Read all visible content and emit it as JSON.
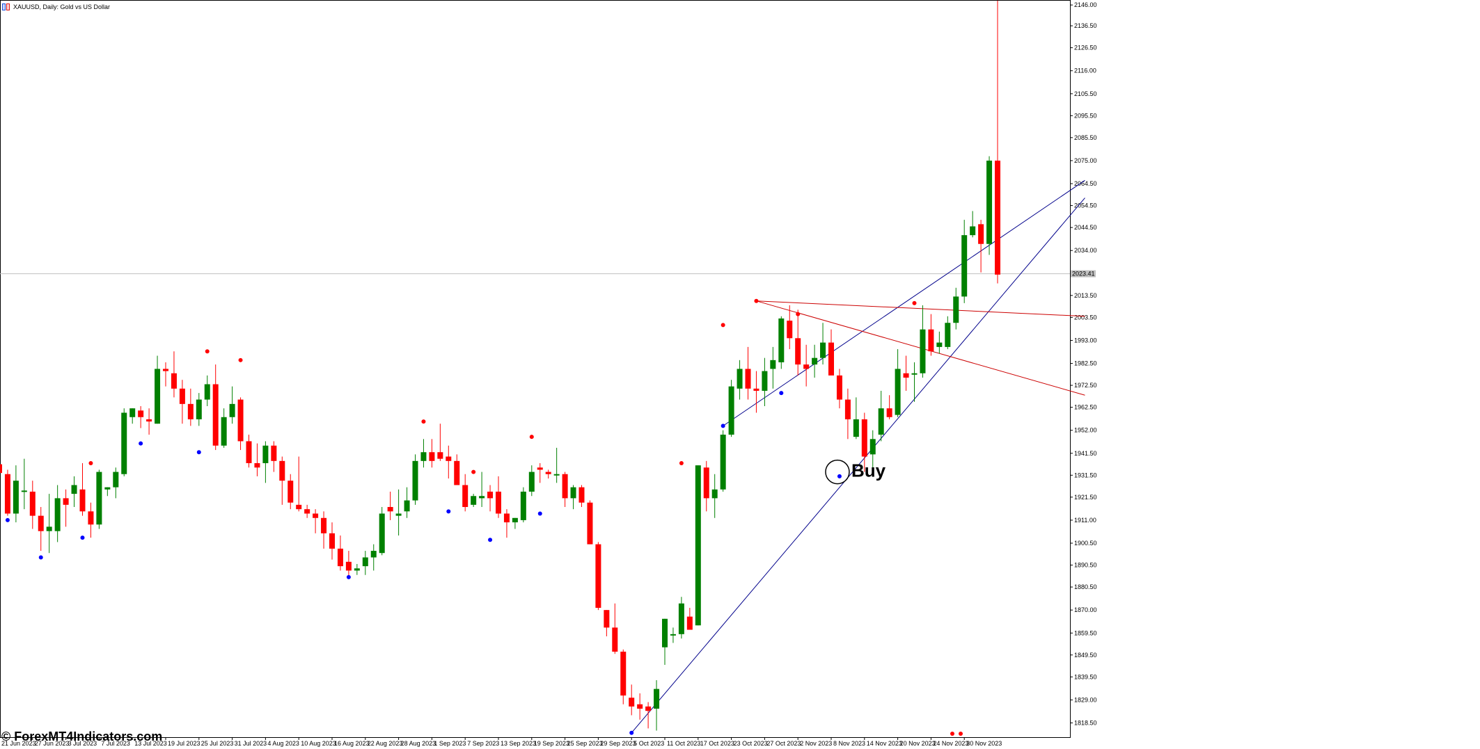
{
  "window": {
    "title": "XAUUSD, Daily:  Gold vs US Dollar",
    "icon": "chart-window-icon"
  },
  "watermark": "© ForexMT4Indicators.com",
  "signal": {
    "label": "Buy",
    "date": "10 Nov 2023",
    "price": 1933.0
  },
  "price_line": {
    "value": 2023.4,
    "label": "2023.41"
  },
  "colors": {
    "bull": "#008000",
    "bear": "#ff0000",
    "swing_high": "#ff0000",
    "swing_low": "#0000ff",
    "support_line": "#00008b",
    "resistance_line": "#cc0000",
    "price_line": "#c0c0c0"
  },
  "chart_data": {
    "type": "candlestick",
    "symbol": "XAUUSD",
    "timeframe": "Daily",
    "ylim": [
      1812.0,
      2147.0
    ],
    "y_ticks": [
      2146.0,
      2136.5,
      2126.5,
      2116.0,
      2105.5,
      2095.5,
      2085.5,
      2075.0,
      2064.5,
      2054.5,
      2044.5,
      2034.0,
      2013.5,
      2003.5,
      1993.0,
      1982.5,
      1972.5,
      1962.5,
      1952.0,
      1941.5,
      1931.5,
      1921.5,
      1911.0,
      1900.5,
      1890.5,
      1880.5,
      1870.0,
      1859.5,
      1849.5,
      1839.5,
      1829.0,
      1818.5
    ],
    "x_labels": [
      "21 Jun 2023",
      "27 Jun 2023",
      "3 Jul 2023",
      "7 Jul 2023",
      "13 Jul 2023",
      "19 Jul 2023",
      "25 Jul 2023",
      "31 Jul 2023",
      "4 Aug 2023",
      "10 Aug 2023",
      "16 Aug 2023",
      "22 Aug 2023",
      "28 Aug 2023",
      "1 Sep 2023",
      "7 Sep 2023",
      "13 Sep 2023",
      "19 Sep 2023",
      "25 Sep 2023",
      "29 Sep 2023",
      "5 Oct 2023",
      "11 Oct 2023",
      "17 Oct 2023",
      "23 Oct 2023",
      "27 Oct 2023",
      "2 Nov 2023",
      "8 Nov 2023",
      "14 Nov 2023",
      "20 Nov 2023",
      "24 Nov 2023",
      "30 Nov 2023"
    ],
    "candles": [
      {
        "o": 1936.5,
        "h": 1940,
        "l": 1921,
        "c": 1932.5
      },
      {
        "o": 1932,
        "h": 1934,
        "l": 1913,
        "c": 1914
      },
      {
        "o": 1914,
        "h": 1936,
        "l": 1910,
        "c": 1929
      },
      {
        "o": 1924,
        "h": 1939,
        "l": 1916,
        "c": 1924.5
      },
      {
        "o": 1924,
        "h": 1929,
        "l": 1907,
        "c": 1913
      },
      {
        "o": 1913,
        "h": 1917,
        "l": 1897,
        "c": 1906
      },
      {
        "o": 1906,
        "h": 1923,
        "l": 1896,
        "c": 1908
      },
      {
        "o": 1906,
        "h": 1927,
        "l": 1901,
        "c": 1921
      },
      {
        "o": 1921,
        "h": 1925,
        "l": 1908,
        "c": 1918
      },
      {
        "o": 1923,
        "h": 1931,
        "l": 1917,
        "c": 1927
      },
      {
        "o": 1925,
        "h": 1937,
        "l": 1913,
        "c": 1915
      },
      {
        "o": 1915,
        "h": 1919,
        "l": 1903,
        "c": 1909
      },
      {
        "o": 1909,
        "h": 1934,
        "l": 1907,
        "c": 1933
      },
      {
        "o": 1925,
        "h": 1926,
        "l": 1922,
        "c": 1926
      },
      {
        "o": 1926,
        "h": 1935,
        "l": 1921,
        "c": 1933
      },
      {
        "o": 1932,
        "h": 1962,
        "l": 1931,
        "c": 1960
      },
      {
        "o": 1958,
        "h": 1962,
        "l": 1955,
        "c": 1962
      },
      {
        "o": 1961,
        "h": 1963,
        "l": 1953,
        "c": 1958
      },
      {
        "o": 1957,
        "h": 1962,
        "l": 1950,
        "c": 1956
      },
      {
        "o": 1955,
        "h": 1986,
        "l": 1955,
        "c": 1980
      },
      {
        "o": 1980,
        "h": 1983,
        "l": 1972,
        "c": 1979
      },
      {
        "o": 1978,
        "h": 1988,
        "l": 1967,
        "c": 1971
      },
      {
        "o": 1971,
        "h": 1975,
        "l": 1955,
        "c": 1964
      },
      {
        "o": 1964,
        "h": 1971,
        "l": 1954,
        "c": 1957
      },
      {
        "o": 1957,
        "h": 1969,
        "l": 1954,
        "c": 1966
      },
      {
        "o": 1966,
        "h": 1977,
        "l": 1963,
        "c": 1973
      },
      {
        "o": 1973,
        "h": 1982,
        "l": 1943,
        "c": 1945
      },
      {
        "o": 1945,
        "h": 1962,
        "l": 1944,
        "c": 1958
      },
      {
        "o": 1958,
        "h": 1972,
        "l": 1955,
        "c": 1964
      },
      {
        "o": 1966,
        "h": 1967,
        "l": 1943,
        "c": 1947
      },
      {
        "o": 1947,
        "h": 1950,
        "l": 1935,
        "c": 1937
      },
      {
        "o": 1937,
        "h": 1946,
        "l": 1931,
        "c": 1935
      },
      {
        "o": 1937,
        "h": 1947,
        "l": 1928,
        "c": 1945
      },
      {
        "o": 1945,
        "h": 1947,
        "l": 1933,
        "c": 1938
      },
      {
        "o": 1938,
        "h": 1940,
        "l": 1918,
        "c": 1929
      },
      {
        "o": 1929,
        "h": 1932,
        "l": 1916,
        "c": 1919
      },
      {
        "o": 1918,
        "h": 1940,
        "l": 1915,
        "c": 1916
      },
      {
        "o": 1916,
        "h": 1918,
        "l": 1912,
        "c": 1914
      },
      {
        "o": 1914,
        "h": 1916,
        "l": 1905,
        "c": 1912
      },
      {
        "o": 1912,
        "h": 1915,
        "l": 1898,
        "c": 1905
      },
      {
        "o": 1905,
        "h": 1910,
        "l": 1893,
        "c": 1898
      },
      {
        "o": 1898,
        "h": 1904,
        "l": 1888,
        "c": 1890
      },
      {
        "o": 1892,
        "h": 1897,
        "l": 1885,
        "c": 1888
      },
      {
        "o": 1888,
        "h": 1891,
        "l": 1886,
        "c": 1889
      },
      {
        "o": 1890,
        "h": 1897,
        "l": 1886,
        "c": 1894
      },
      {
        "o": 1894,
        "h": 1900,
        "l": 1888,
        "c": 1897
      },
      {
        "o": 1896,
        "h": 1917,
        "l": 1895,
        "c": 1914
      },
      {
        "o": 1917,
        "h": 1924,
        "l": 1911,
        "c": 1915
      },
      {
        "o": 1913,
        "h": 1925,
        "l": 1904,
        "c": 1914
      },
      {
        "o": 1915,
        "h": 1926,
        "l": 1912,
        "c": 1920
      },
      {
        "o": 1920,
        "h": 1941,
        "l": 1918,
        "c": 1938
      },
      {
        "o": 1938,
        "h": 1948,
        "l": 1935,
        "c": 1942
      },
      {
        "o": 1942,
        "h": 1948,
        "l": 1935,
        "c": 1938
      },
      {
        "o": 1942,
        "h": 1955,
        "l": 1938,
        "c": 1939
      },
      {
        "o": 1940,
        "h": 1945,
        "l": 1930,
        "c": 1938
      },
      {
        "o": 1938,
        "h": 1941,
        "l": 1927,
        "c": 1927
      },
      {
        "o": 1927,
        "h": 1932,
        "l": 1915,
        "c": 1917
      },
      {
        "o": 1918,
        "h": 1923,
        "l": 1917,
        "c": 1922
      },
      {
        "o": 1921,
        "h": 1933,
        "l": 1917,
        "c": 1922
      },
      {
        "o": 1924,
        "h": 1927,
        "l": 1915,
        "c": 1921
      },
      {
        "o": 1924,
        "h": 1931,
        "l": 1912,
        "c": 1914
      },
      {
        "o": 1914,
        "h": 1916,
        "l": 1903,
        "c": 1910
      },
      {
        "o": 1910,
        "h": 1912,
        "l": 1907,
        "c": 1912
      },
      {
        "o": 1911,
        "h": 1926,
        "l": 1910,
        "c": 1924
      },
      {
        "o": 1924,
        "h": 1936,
        "l": 1922,
        "c": 1933
      },
      {
        "o": 1935,
        "h": 1937,
        "l": 1928,
        "c": 1934
      },
      {
        "o": 1933,
        "h": 1934,
        "l": 1930,
        "c": 1932
      },
      {
        "o": 1932,
        "h": 1944,
        "l": 1928,
        "c": 1932
      },
      {
        "o": 1932,
        "h": 1933,
        "l": 1917,
        "c": 1921
      },
      {
        "o": 1921,
        "h": 1927,
        "l": 1916,
        "c": 1926
      },
      {
        "o": 1926,
        "h": 1927,
        "l": 1917,
        "c": 1919
      },
      {
        "o": 1919,
        "h": 1920,
        "l": 1900,
        "c": 1900
      },
      {
        "o": 1900,
        "h": 1901,
        "l": 1870,
        "c": 1871
      },
      {
        "o": 1870,
        "h": 1870,
        "l": 1858,
        "c": 1862
      },
      {
        "o": 1862,
        "h": 1873,
        "l": 1850,
        "c": 1851
      },
      {
        "o": 1851,
        "h": 1852,
        "l": 1827,
        "c": 1831
      },
      {
        "o": 1830,
        "h": 1836,
        "l": 1822,
        "c": 1826
      },
      {
        "o": 1827,
        "h": 1832,
        "l": 1820,
        "c": 1825
      },
      {
        "o": 1826,
        "h": 1828,
        "l": 1816,
        "c": 1824
      },
      {
        "o": 1825,
        "h": 1838,
        "l": 1815,
        "c": 1834
      },
      {
        "o": 1853,
        "h": 1866,
        "l": 1845,
        "c": 1866
      },
      {
        "o": 1859,
        "h": 1862,
        "l": 1855,
        "c": 1859
      },
      {
        "o": 1859,
        "h": 1876,
        "l": 1857,
        "c": 1873
      },
      {
        "o": 1867,
        "h": 1871,
        "l": 1862,
        "c": 1861
      },
      {
        "o": 1863,
        "h": 1936,
        "l": 1863,
        "c": 1936
      },
      {
        "o": 1935,
        "h": 1938,
        "l": 1915,
        "c": 1921
      },
      {
        "o": 1921,
        "h": 1932,
        "l": 1912,
        "c": 1925
      },
      {
        "o": 1925,
        "h": 1952,
        "l": 1924,
        "c": 1950
      },
      {
        "o": 1950,
        "h": 1975,
        "l": 1949,
        "c": 1972
      },
      {
        "o": 1971,
        "h": 1984,
        "l": 1966,
        "c": 1980
      },
      {
        "o": 1980,
        "h": 1990,
        "l": 1966,
        "c": 1971
      },
      {
        "o": 1971,
        "h": 1979,
        "l": 1960,
        "c": 1970
      },
      {
        "o": 1970,
        "h": 1985,
        "l": 1963,
        "c": 1979
      },
      {
        "o": 1980,
        "h": 1990,
        "l": 1971,
        "c": 1984
      },
      {
        "o": 1983,
        "h": 2004,
        "l": 1980,
        "c": 2003
      },
      {
        "o": 2002,
        "h": 2009,
        "l": 1989,
        "c": 1994
      },
      {
        "o": 1994,
        "h": 2007,
        "l": 1977,
        "c": 1982
      },
      {
        "o": 1982,
        "h": 1991,
        "l": 1972,
        "c": 1980
      },
      {
        "o": 1982,
        "h": 1991,
        "l": 1976,
        "c": 1985
      },
      {
        "o": 1985,
        "h": 2001,
        "l": 1982,
        "c": 1992
      },
      {
        "o": 1992,
        "h": 1998,
        "l": 1979,
        "c": 1977
      },
      {
        "o": 1977,
        "h": 1980,
        "l": 1962,
        "c": 1966
      },
      {
        "o": 1966,
        "h": 1971,
        "l": 1948,
        "c": 1957
      },
      {
        "o": 1949,
        "h": 1967,
        "l": 1948,
        "c": 1957
      },
      {
        "o": 1957,
        "h": 1960,
        "l": 1933,
        "c": 1940
      },
      {
        "o": 1941,
        "h": 1952,
        "l": 1933,
        "c": 1948
      },
      {
        "o": 1950,
        "h": 1970,
        "l": 1947,
        "c": 1962
      },
      {
        "o": 1962,
        "h": 1968,
        "l": 1957,
        "c": 1958
      },
      {
        "o": 1959,
        "h": 1989,
        "l": 1958,
        "c": 1980
      },
      {
        "o": 1978,
        "h": 1986,
        "l": 1970,
        "c": 1976
      },
      {
        "o": 1978,
        "h": 1983,
        "l": 1965,
        "c": 1978
      },
      {
        "o": 1978,
        "h": 2009,
        "l": 1976,
        "c": 1998
      },
      {
        "o": 1998,
        "h": 2005,
        "l": 1986,
        "c": 1988
      },
      {
        "o": 1990,
        "h": 1997,
        "l": 1987,
        "c": 1992
      },
      {
        "o": 1990,
        "h": 2004,
        "l": 1989,
        "c": 2001
      },
      {
        "o": 2001,
        "h": 2017,
        "l": 1998,
        "c": 2013
      },
      {
        "o": 2013,
        "h": 2048,
        "l": 2010,
        "c": 2041
      },
      {
        "o": 2041,
        "h": 2052,
        "l": 2040,
        "c": 2045
      },
      {
        "o": 2046,
        "h": 2048,
        "l": 2024,
        "c": 2037
      },
      {
        "o": 2037,
        "h": 2077,
        "l": 2032,
        "c": 2075
      },
      {
        "o": 2075,
        "h": 2148,
        "l": 2019,
        "c": 2023
      }
    ],
    "swing_highs": [
      {
        "i": 11,
        "p": 1937
      },
      {
        "i": 25,
        "p": 1988
      },
      {
        "i": 29,
        "p": 1984
      },
      {
        "i": 51,
        "p": 1956
      },
      {
        "i": 57,
        "p": 1933
      },
      {
        "i": 64,
        "p": 1949
      },
      {
        "i": 82,
        "p": 1937
      },
      {
        "i": 87,
        "p": 2000
      },
      {
        "i": 91,
        "p": 2011
      },
      {
        "i": 96,
        "p": 2005
      },
      {
        "i": 110,
        "p": 2010
      }
    ],
    "swing_lows": [
      {
        "i": 1,
        "p": 1911
      },
      {
        "i": 5,
        "p": 1894
      },
      {
        "i": 10,
        "p": 1903
      },
      {
        "i": 17,
        "p": 1946
      },
      {
        "i": 24,
        "p": 1942
      },
      {
        "i": 42,
        "p": 1885
      },
      {
        "i": 54,
        "p": 1915
      },
      {
        "i": 59,
        "p": 1902
      },
      {
        "i": 65,
        "p": 1914
      },
      {
        "i": 76,
        "p": 1814
      },
      {
        "i": 87,
        "p": 1954
      },
      {
        "i": 94,
        "p": 1969
      },
      {
        "i": 101,
        "p": 1931
      }
    ],
    "support_lines": [
      {
        "from": {
          "i": 76,
          "p": 1814
        },
        "to": {
          "i": 130.5,
          "p": 2058
        }
      },
      {
        "from": {
          "i": 87,
          "p": 1954
        },
        "to": {
          "i": 130.5,
          "p": 2066
        }
      }
    ],
    "resistance_lines": [
      {
        "from": {
          "i": 91,
          "p": 2011
        },
        "to": {
          "i": 130.5,
          "p": 2004
        }
      },
      {
        "from": {
          "i": 91,
          "p": 2011
        },
        "to": {
          "i": 130.5,
          "p": 1968
        }
      }
    ],
    "xlabel_index": [
      0,
      4,
      8,
      12,
      16,
      20,
      24,
      28,
      32,
      36,
      40,
      44,
      48,
      52,
      56,
      60,
      64,
      68,
      72,
      76,
      80,
      84,
      88,
      92,
      96,
      100,
      104,
      108,
      112,
      116
    ],
    "grid": false
  }
}
